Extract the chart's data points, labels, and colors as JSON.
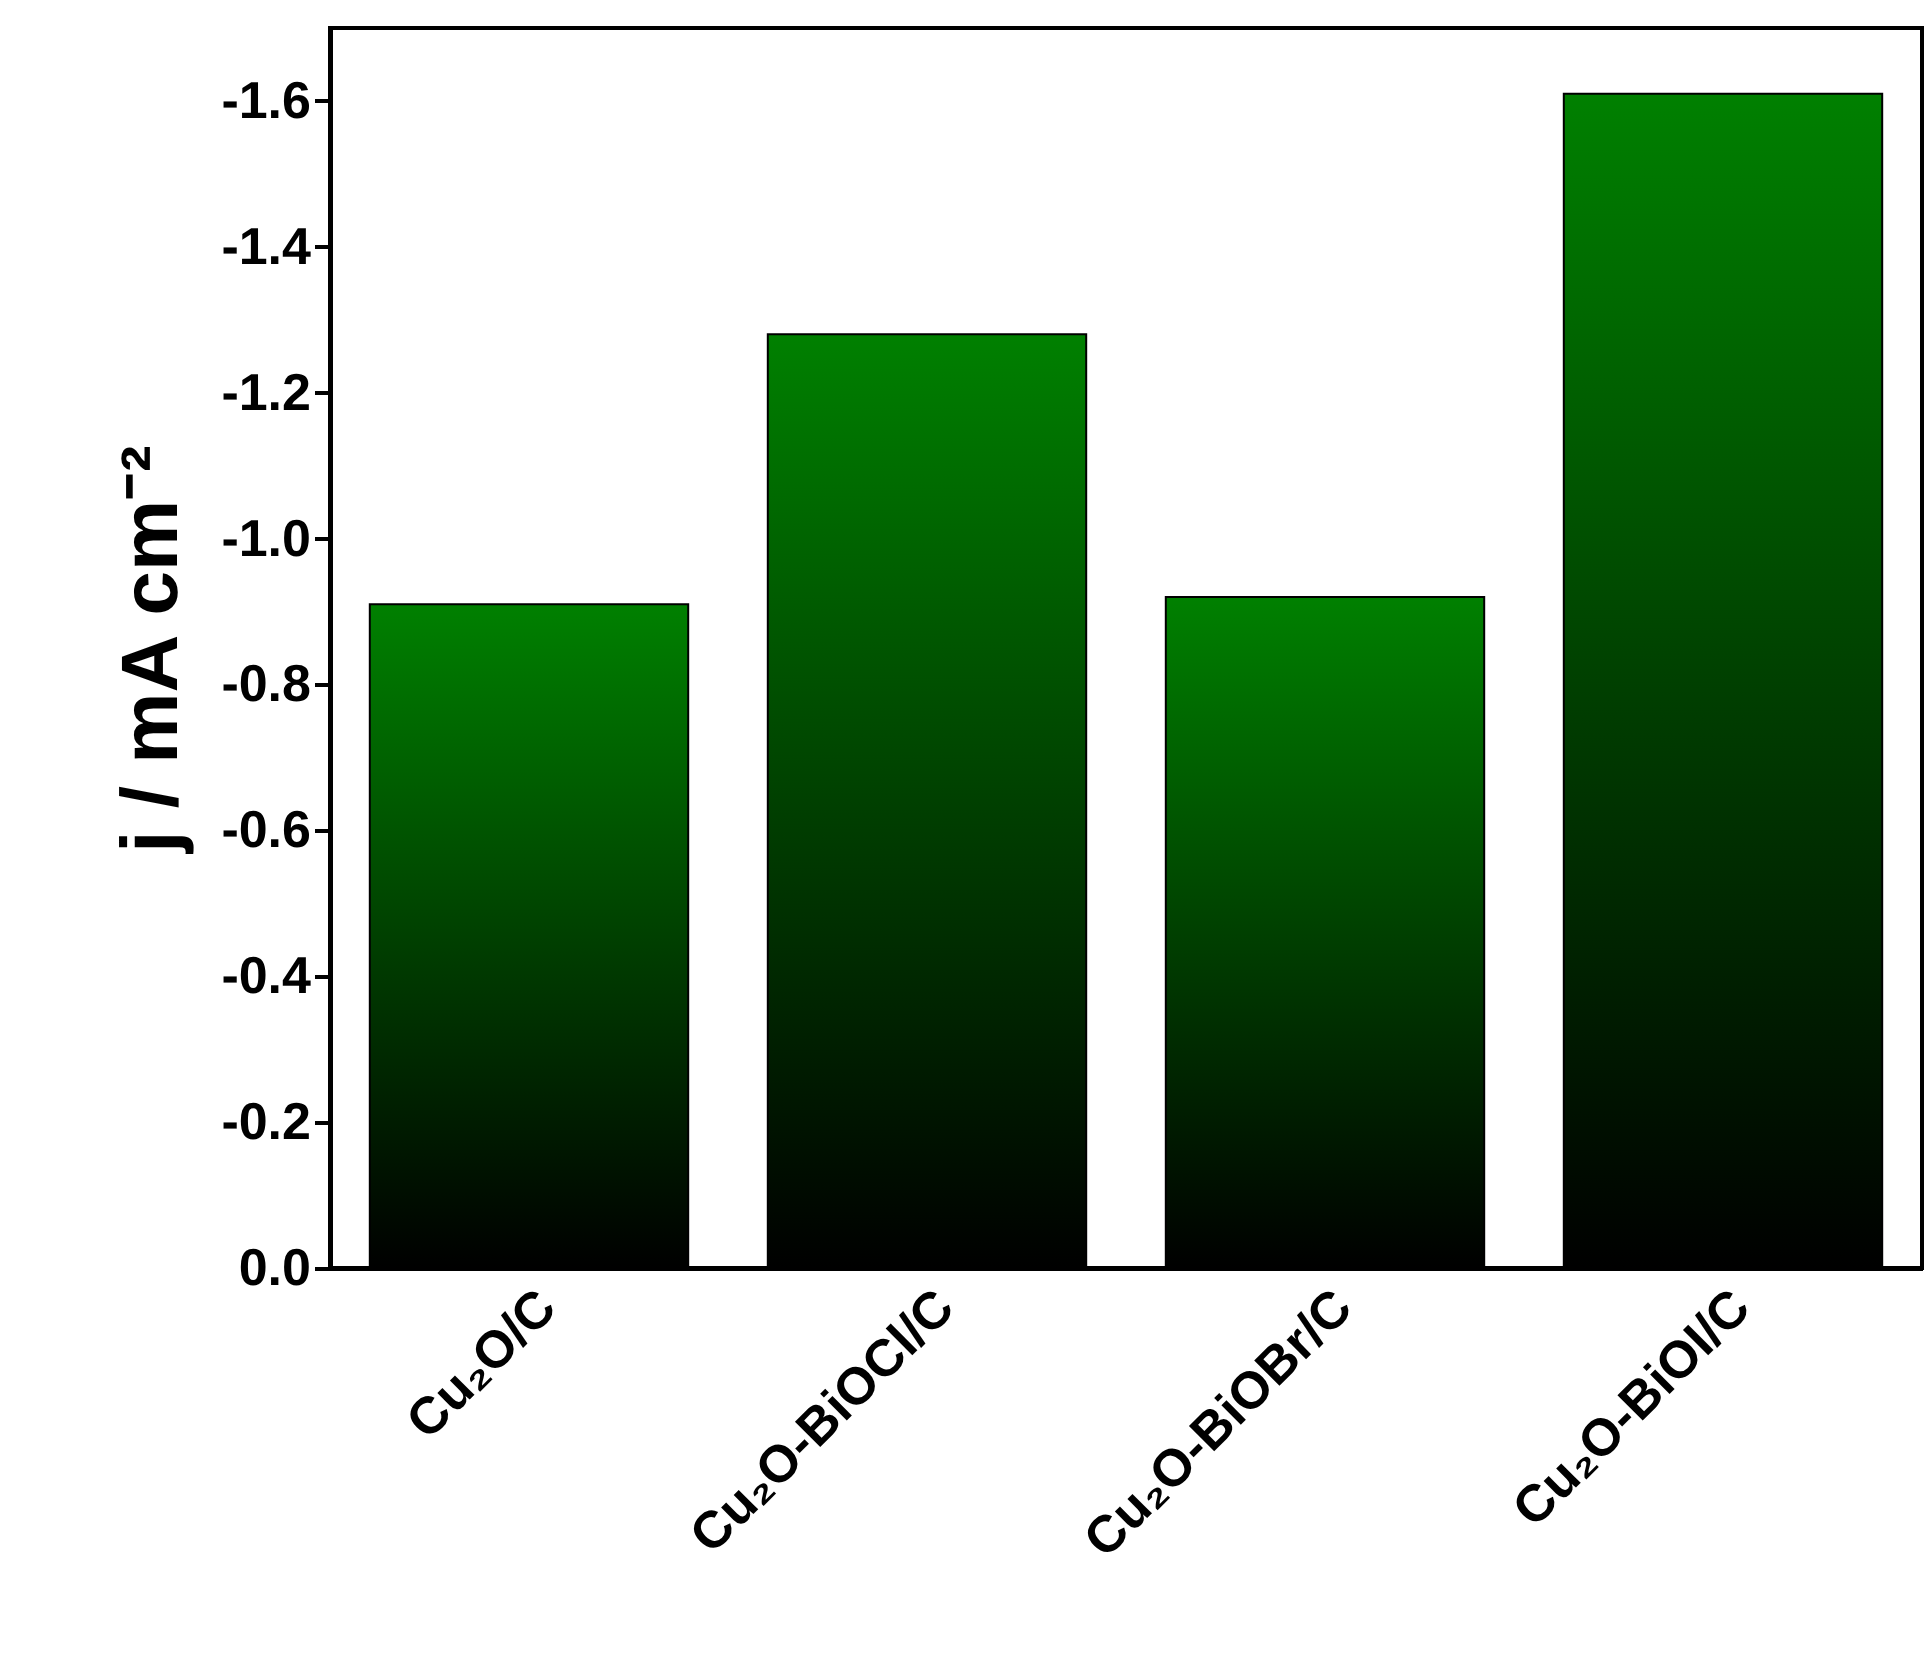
{
  "chart_data": {
    "type": "bar",
    "ylabel": "j / mA cm⁻²",
    "categories": [
      "Cu₂O/C",
      "Cu₂O-BiOCl/C",
      "Cu₂O-BiOBr/C",
      "Cu₂O-BiOI/C"
    ],
    "values": [
      -0.91,
      -1.28,
      -0.92,
      -1.61
    ],
    "color": "#008000",
    "ylim": [
      0,
      -1.7
    ],
    "yticks": [
      {
        "value": 0,
        "label": "0.0"
      },
      {
        "value": -0.2,
        "label": "-0.2"
      },
      {
        "value": -0.4,
        "label": "-0.4"
      },
      {
        "value": -0.6,
        "label": "-0.6"
      },
      {
        "value": -0.8,
        "label": "-0.8"
      },
      {
        "value": -1,
        "label": "-1.0"
      },
      {
        "value": -1.2,
        "label": "-1.2"
      },
      {
        "value": -1.4,
        "label": "-1.4"
      },
      {
        "value": -1.6,
        "label": "-1.6"
      }
    ],
    "grid": false
  }
}
